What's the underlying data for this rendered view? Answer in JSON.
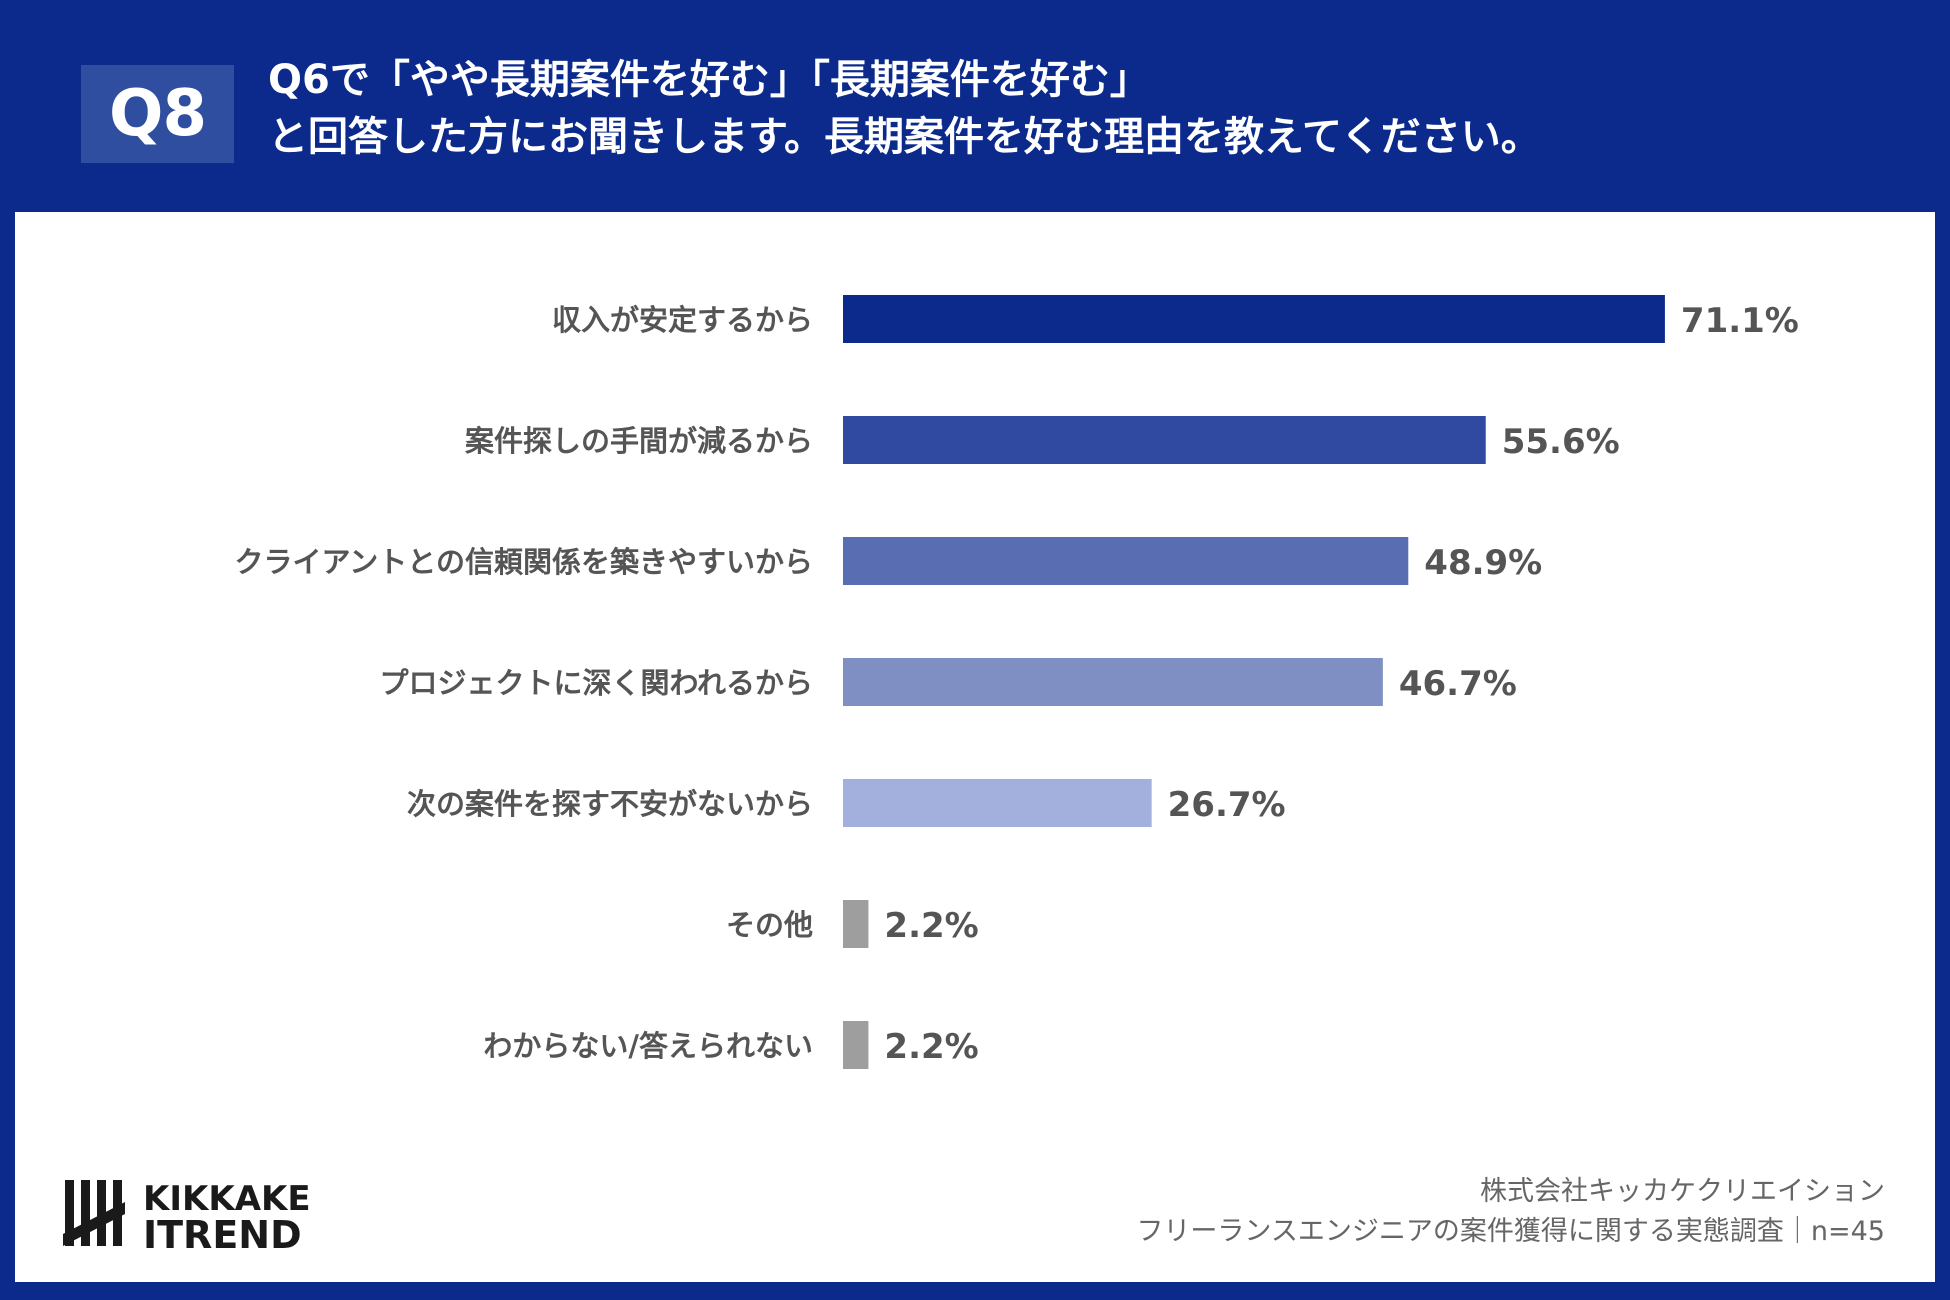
{
  "header": {
    "badge": "Q8",
    "title_line1": "Q6で「やや長期案件を好む」「長期案件を好む」",
    "title_line2": "と回答した方にお聞きします。長期案件を好む理由を教えてください。"
  },
  "chart_data": {
    "type": "bar",
    "orientation": "horizontal",
    "categories": [
      "収入が安定するから",
      "案件探しの手間が減るから",
      "クライアントとの信頼関係を築きやすいから",
      "プロジェクトに深く関われるから",
      "次の案件を探す不安がないから",
      "その他",
      "わからない/答えられない"
    ],
    "values": [
      71.1,
      55.6,
      48.9,
      46.7,
      26.7,
      2.2,
      2.2
    ],
    "value_labels": [
      "71.1%",
      "55.6%",
      "48.9%",
      "46.7%",
      "26.7%",
      "2.2%",
      "2.2%"
    ],
    "colors": [
      "#0b2a8c",
      "#2f4aa0",
      "#586db2",
      "#7f8fc4",
      "#a3afdc",
      "#9e9e9e",
      "#9e9e9e"
    ],
    "unit": "%",
    "xlim": [
      0,
      100
    ],
    "grid": false,
    "legend": "none"
  },
  "footer": {
    "logo_line1": "KIKKAKE",
    "logo_line2": "ITREND",
    "company": "株式会社キッカケクリエイション",
    "survey": "フリーランスエンジニアの案件獲得に関する実態調査｜n=45"
  },
  "colors": {
    "background": "#0b2a8c",
    "badge": "#2f4ea0",
    "label_text": "#555555",
    "value_text": "#555555"
  }
}
